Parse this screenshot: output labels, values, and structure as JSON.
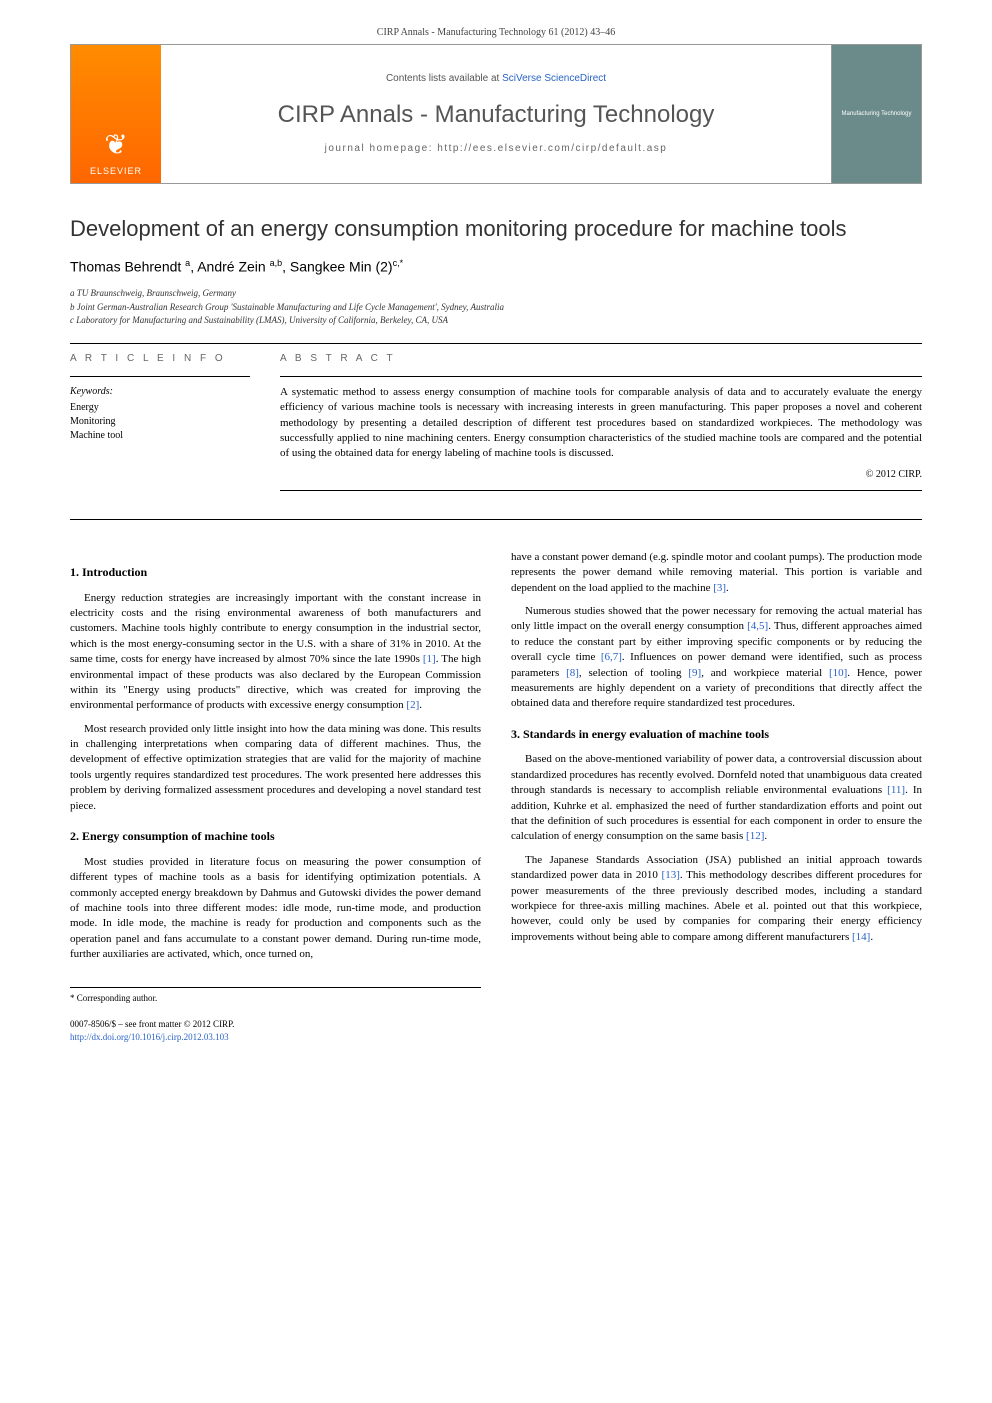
{
  "header": {
    "citation": "CIRP Annals - Manufacturing Technology 61 (2012) 43–46",
    "directory_prefix": "Contents lists available at ",
    "directory_link": "SciVerse ScienceDirect",
    "journal_title": "CIRP Annals - Manufacturing Technology",
    "homepage": "journal homepage: http://ees.elsevier.com/cirp/default.asp",
    "publisher": "ELSEVIER",
    "cover_text": "Manufacturing Technology"
  },
  "article": {
    "title": "Development of an energy consumption monitoring procedure for machine tools",
    "authors_html": "Thomas Behrendt <sup>a</sup>, André Zein <sup>a,b</sup>, Sangkee Min  (2)<sup>c,*</sup>",
    "affiliations": [
      "a TU Braunschweig, Braunschweig, Germany",
      "b Joint German-Australian Research Group 'Sustainable Manufacturing and Life Cycle Management', Sydney, Australia",
      "c Laboratory for Manufacturing and Sustainability (LMAS), University of California, Berkeley, CA, USA"
    ]
  },
  "info": {
    "heading": "A R T I C L E  I N F O",
    "keywords_label": "Keywords:",
    "keywords": [
      "Energy",
      "Monitoring",
      "Machine tool"
    ]
  },
  "abstract": {
    "heading": "A B S T R A C T",
    "text": "A systematic method to assess energy consumption of machine tools for comparable analysis of data and to accurately evaluate the energy efficiency of various machine tools is necessary with increasing interests in green manufacturing. This paper proposes a novel and coherent methodology by presenting a detailed description of different test procedures based on standardized workpieces. The methodology was successfully applied to nine machining centers. Energy consumption characteristics of the studied machine tools are compared and the potential of using the obtained data for energy labeling of machine tools is discussed.",
    "copyright": "© 2012 CIRP."
  },
  "sections": {
    "s1": {
      "heading": "1. Introduction",
      "p1": "Energy reduction strategies are increasingly important with the constant increase in electricity costs and the rising environmental awareness of both manufacturers and customers. Machine tools highly contribute to energy consumption in the industrial sector, which is the most energy-consuming sector in the U.S. with a share of 31% in 2010. At the same time, costs for energy have increased by almost 70% since the late 1990s ",
      "p1_ref": "[1]",
      "p1b": ". The high environmental impact of these products was also declared by the European Commission within its \"Energy using products\" directive, which was created for improving the environmental performance of products with excessive energy consumption ",
      "p1b_ref": "[2]",
      "p2": "Most research provided only little insight into how the data mining was done. This results in challenging interpretations when comparing data of different machines. Thus, the development of effective optimization strategies that are valid for the majority of machine tools urgently requires standardized test procedures. The work presented here addresses this problem by deriving formalized assessment procedures and developing a novel standard test piece."
    },
    "s2": {
      "heading": "2. Energy consumption of machine tools",
      "p1": "Most studies provided in literature focus on measuring the power consumption of different types of machine tools as a basis for identifying optimization potentials. A commonly accepted energy breakdown by Dahmus and Gutowski divides the power demand of machine tools into three different modes: idle mode, run-time mode, and production mode. In idle mode, the machine is ready for production and components such as the operation panel and fans accumulate to a constant power demand. During run-time mode, further auxiliaries are activated, which, once turned on,",
      "p2a": "have a constant power demand (e.g. spindle motor and coolant pumps). The production mode represents the power demand while removing material. This portion is variable and dependent on the load applied to the machine ",
      "p2a_ref": "[3]",
      "p3": "Numerous studies showed that the power necessary for removing the actual material has only little impact on the overall energy consumption ",
      "p3_ref1": "[4,5]",
      "p3b": ". Thus, different approaches aimed to reduce the constant part by either improving specific components or by reducing the overall cycle time ",
      "p3_ref2": "[6,7]",
      "p3c": ". Influences on power demand were identified, such as process parameters ",
      "p3_ref3": "[8]",
      "p3d": ", selection of tooling ",
      "p3_ref4": "[9]",
      "p3e": ", and workpiece material ",
      "p3_ref5": "[10]",
      "p3f": ". Hence, power measurements are highly dependent on a variety of preconditions that directly affect the obtained data and therefore require standardized test procedures."
    },
    "s3": {
      "heading": "3. Standards in energy evaluation of machine tools",
      "p1": "Based on the above-mentioned variability of power data, a controversial discussion about standardized procedures has recently evolved. Dornfeld noted that unambiguous data created through standards is necessary to accomplish reliable environmental evaluations ",
      "p1_ref1": "[11]",
      "p1b": ". In addition, Kuhrke et al. emphasized the need of further standardization efforts and point out that the definition of such procedures is essential for each component in order to ensure the calculation of energy consumption on the same basis ",
      "p1_ref2": "[12]",
      "p2": "The Japanese Standards Association (JSA) published an initial approach towards standardized power data in 2010 ",
      "p2_ref1": "[13]",
      "p2b": ". This methodology describes different procedures for power measurements of the three previously described modes, including a standard workpiece for three-axis milling machines. Abele et al. pointed out that this workpiece, however, could only be used by companies for comparing their energy efficiency improvements without being able to compare among different manufacturers ",
      "p2_ref2": "[14]"
    }
  },
  "footer": {
    "corresponding": "* Corresponding author.",
    "issn": "0007-8506/$ – see front matter © 2012 CIRP.",
    "doi": "http://dx.doi.org/10.1016/j.cirp.2012.03.103"
  }
}
